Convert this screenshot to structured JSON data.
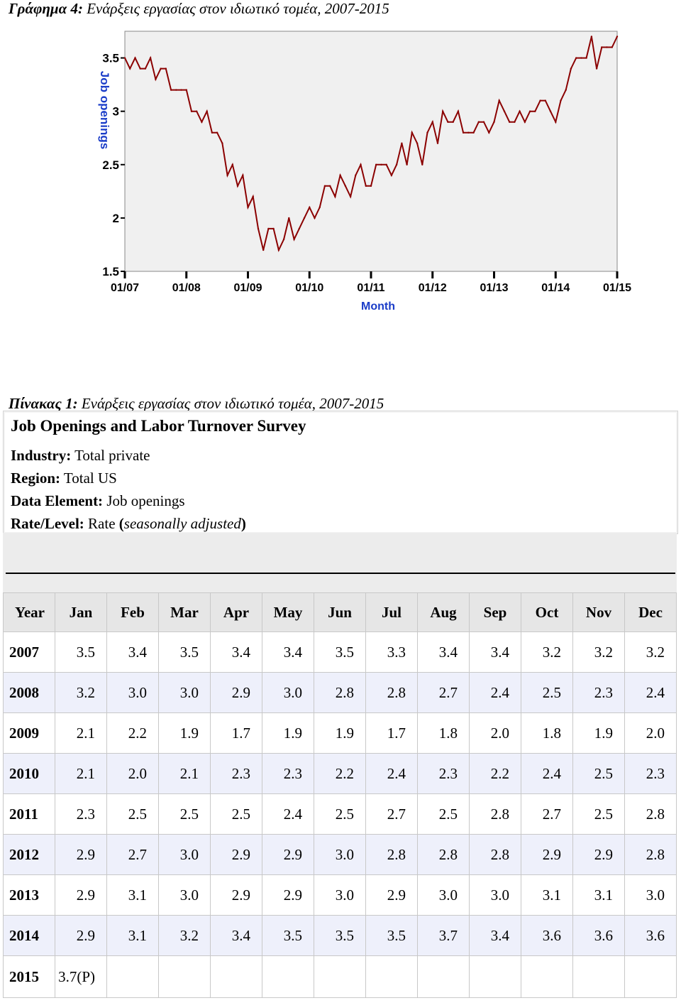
{
  "figure_caption": {
    "label": "Γράφημα 4:",
    "text": " Ενάρξεις εργασίας στον ιδιωτικό τομέα, 2007-2015"
  },
  "table_caption": {
    "label": "Πίνακας 1:",
    "text": " Ενάρξεις εργασίας στον ιδιωτικό τομέα, 2007-2015"
  },
  "info": {
    "title": "Job Openings and Labor Turnover Survey",
    "industry_key": "Industry:",
    "industry_val": " Total private",
    "region_key": "Region:",
    "region_val": " Total US",
    "element_key": "Data Element:",
    "element_val": " Job openings",
    "rate_key": "Rate/Level:",
    "rate_val": " Rate ",
    "rate_paren_open": "(",
    "rate_note": "seasonally adjusted",
    "rate_paren_close": ")"
  },
  "colors": {
    "line": "#8b0000",
    "plot_bg": "#f0f0f0",
    "axis_label": "#1a3cc8"
  },
  "chart_data": {
    "type": "line",
    "xlabel": "Month",
    "ylabel": "Job openings",
    "ylim": [
      1.5,
      3.75
    ],
    "yticks": [
      "1.5",
      "2",
      "2.5",
      "3",
      "3.5"
    ],
    "xticks": [
      "01/07",
      "01/08",
      "01/09",
      "01/10",
      "01/11",
      "01/12",
      "01/13",
      "01/14",
      "01/15"
    ],
    "grid": false,
    "series": [
      {
        "start": "2007-01",
        "values": [
          3.5,
          3.4,
          3.5,
          3.4,
          3.4,
          3.5,
          3.3,
          3.4,
          3.4,
          3.2,
          3.2,
          3.2,
          3.2,
          3.0,
          3.0,
          2.9,
          3.0,
          2.8,
          2.8,
          2.7,
          2.4,
          2.5,
          2.3,
          2.4,
          2.1,
          2.2,
          1.9,
          1.7,
          1.9,
          1.9,
          1.7,
          1.8,
          2.0,
          1.8,
          1.9,
          2.0,
          2.1,
          2.0,
          2.1,
          2.3,
          2.3,
          2.2,
          2.4,
          2.3,
          2.2,
          2.4,
          2.5,
          2.3,
          2.3,
          2.5,
          2.5,
          2.5,
          2.4,
          2.5,
          2.7,
          2.5,
          2.8,
          2.7,
          2.5,
          2.8,
          2.9,
          2.7,
          3.0,
          2.9,
          2.9,
          3.0,
          2.8,
          2.8,
          2.8,
          2.9,
          2.9,
          2.8,
          2.9,
          3.1,
          3.0,
          2.9,
          2.9,
          3.0,
          2.9,
          3.0,
          3.0,
          3.1,
          3.1,
          3.0,
          2.9,
          3.1,
          3.2,
          3.4,
          3.5,
          3.5,
          3.5,
          3.7,
          3.4,
          3.6,
          3.6,
          3.6,
          3.7
        ]
      }
    ]
  },
  "table": {
    "headers": [
      "Year",
      "Jan",
      "Feb",
      "Mar",
      "Apr",
      "May",
      "Jun",
      "Jul",
      "Aug",
      "Sep",
      "Oct",
      "Nov",
      "Dec"
    ],
    "rows": [
      [
        "2007",
        "3.5",
        "3.4",
        "3.5",
        "3.4",
        "3.4",
        "3.5",
        "3.3",
        "3.4",
        "3.4",
        "3.2",
        "3.2",
        "3.2"
      ],
      [
        "2008",
        "3.2",
        "3.0",
        "3.0",
        "2.9",
        "3.0",
        "2.8",
        "2.8",
        "2.7",
        "2.4",
        "2.5",
        "2.3",
        "2.4"
      ],
      [
        "2009",
        "2.1",
        "2.2",
        "1.9",
        "1.7",
        "1.9",
        "1.9",
        "1.7",
        "1.8",
        "2.0",
        "1.8",
        "1.9",
        "2.0"
      ],
      [
        "2010",
        "2.1",
        "2.0",
        "2.1",
        "2.3",
        "2.3",
        "2.2",
        "2.4",
        "2.3",
        "2.2",
        "2.4",
        "2.5",
        "2.3"
      ],
      [
        "2011",
        "2.3",
        "2.5",
        "2.5",
        "2.5",
        "2.4",
        "2.5",
        "2.7",
        "2.5",
        "2.8",
        "2.7",
        "2.5",
        "2.8"
      ],
      [
        "2012",
        "2.9",
        "2.7",
        "3.0",
        "2.9",
        "2.9",
        "3.0",
        "2.8",
        "2.8",
        "2.8",
        "2.9",
        "2.9",
        "2.8"
      ],
      [
        "2013",
        "2.9",
        "3.1",
        "3.0",
        "2.9",
        "2.9",
        "3.0",
        "2.9",
        "3.0",
        "3.0",
        "3.1",
        "3.1",
        "3.0"
      ],
      [
        "2014",
        "2.9",
        "3.1",
        "3.2",
        "3.4",
        "3.5",
        "3.5",
        "3.5",
        "3.7",
        "3.4",
        "3.6",
        "3.6",
        "3.6"
      ],
      [
        "2015",
        "3.7(P)",
        "",
        "",
        "",
        "",
        "",
        "",
        "",
        "",
        "",
        "",
        ""
      ]
    ]
  }
}
